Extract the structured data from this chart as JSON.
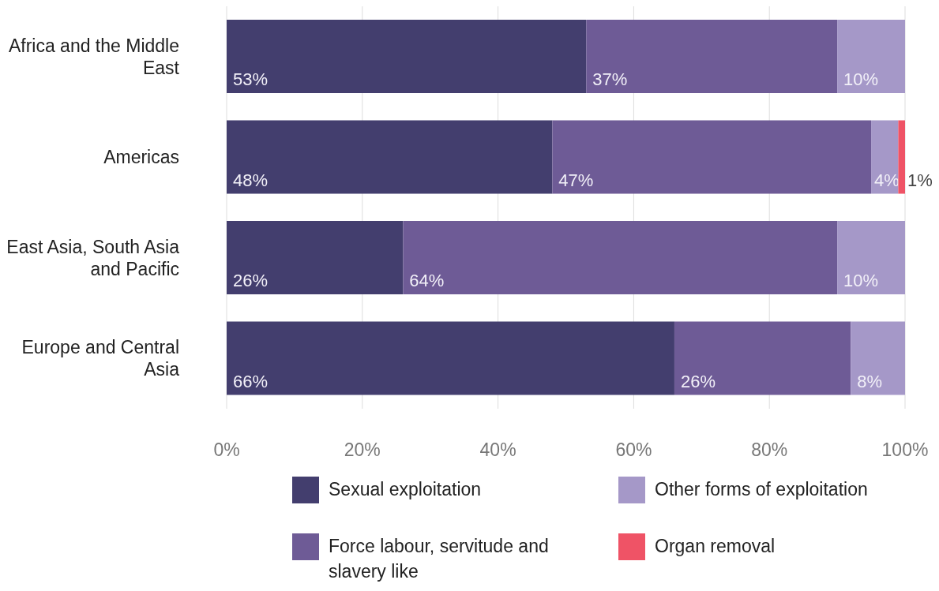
{
  "chart_data": {
    "type": "bar",
    "orientation": "horizontal",
    "stacked": true,
    "categories": [
      "Africa and the Middle East",
      "Americas",
      "East Asia, South Asia and Pacific",
      "Europe and Central Asia"
    ],
    "series": [
      {
        "name": "Sexual exploitation",
        "color": "#433e6e",
        "values": [
          53,
          48,
          26,
          66
        ],
        "value_labels": [
          "53%",
          "48%",
          "26%",
          "66%"
        ]
      },
      {
        "name": "Force labour, servitude and slavery like",
        "color": "#6e5b96",
        "values": [
          37,
          47,
          64,
          26
        ],
        "value_labels": [
          "37%",
          "47%",
          "64%",
          "26%"
        ]
      },
      {
        "name": "Other forms of exploitation",
        "color": "#a598c8",
        "values": [
          10,
          4,
          10,
          8
        ],
        "value_labels": [
          "10%",
          "4%",
          "10%",
          "8%"
        ]
      },
      {
        "name": "Organ removal",
        "color": "#ef5366",
        "values": [
          null,
          1,
          null,
          null
        ],
        "value_labels": [
          null,
          "1%",
          null,
          null
        ]
      }
    ],
    "xlim": [
      0,
      100
    ],
    "xticks": [
      {
        "value": 0,
        "label": "0%"
      },
      {
        "value": 20,
        "label": "20%"
      },
      {
        "value": 40,
        "label": "40%"
      },
      {
        "value": 60,
        "label": "60%"
      },
      {
        "value": 80,
        "label": "80%"
      },
      {
        "value": 100,
        "label": "100%"
      }
    ],
    "grid": "x",
    "legend": "bottom"
  }
}
